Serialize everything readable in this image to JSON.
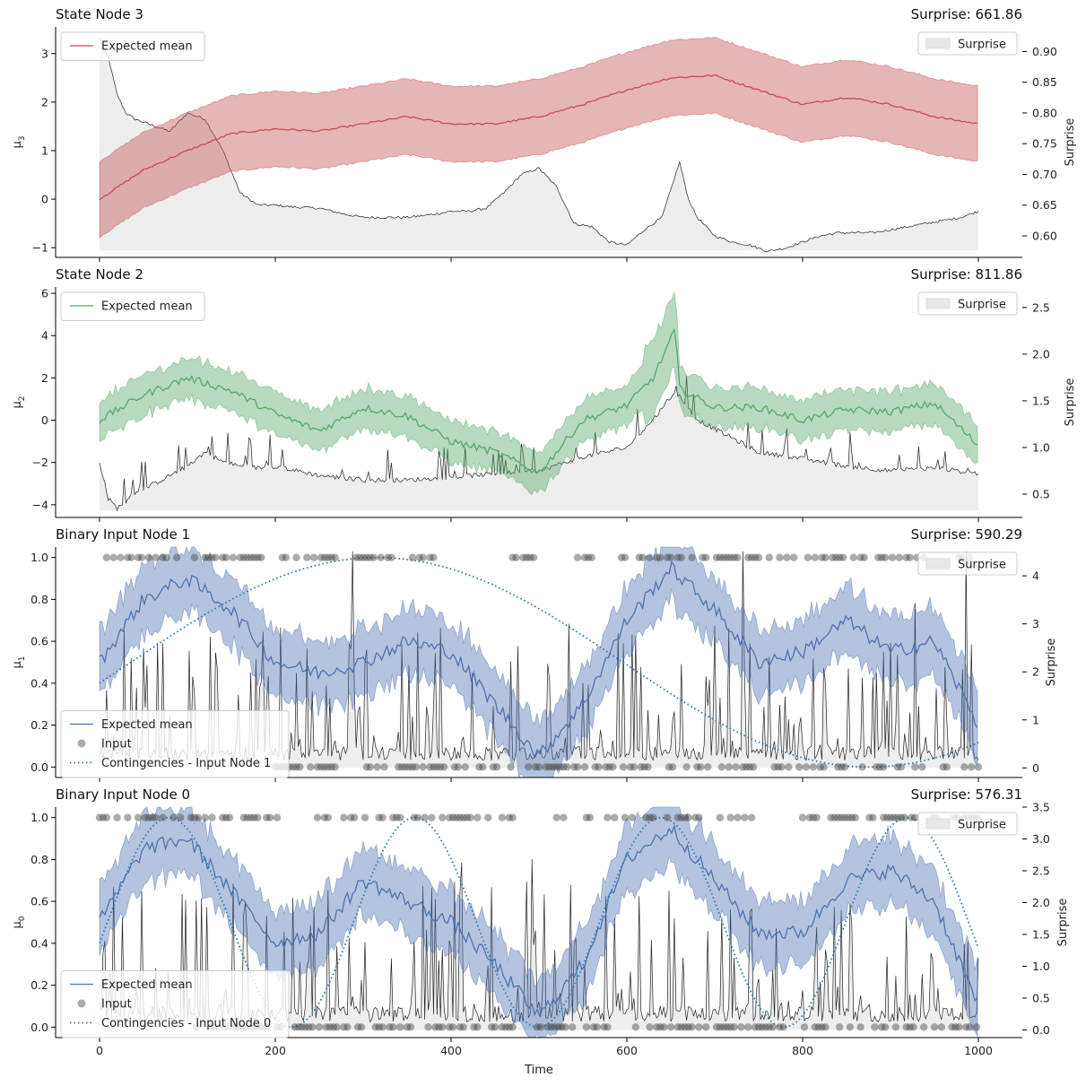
{
  "figure": {
    "xlabel": "Time",
    "x_ticks": [
      0,
      200,
      400,
      600,
      800,
      1000
    ],
    "xlim": [
      -50,
      1050
    ]
  },
  "chart_data": [
    {
      "type": "line",
      "title": "State Node 3",
      "surprise_label": "Surprise: 661.86",
      "ylabel": "μ₃",
      "ylabel_sub": "3",
      "y2label": "Surprise",
      "ylim": [
        -1.2,
        3.55
      ],
      "y_ticks": [
        -1,
        0,
        1,
        2,
        3
      ],
      "y2lim": [
        0.565,
        0.94
      ],
      "y2_ticks": [
        "0.60",
        "0.65",
        "0.70",
        "0.75",
        "0.80",
        "0.85",
        "0.90"
      ],
      "legend_left": [
        "Expected mean"
      ],
      "legend_right": [
        "Surprise"
      ],
      "color": "#c44e52",
      "series": [
        {
          "name": "Expected mean",
          "x": [
            0,
            50,
            100,
            150,
            200,
            250,
            300,
            350,
            400,
            450,
            500,
            550,
            600,
            650,
            700,
            750,
            800,
            850,
            900,
            950,
            1000
          ],
          "values": [
            0.0,
            0.6,
            1.0,
            1.35,
            1.45,
            1.4,
            1.55,
            1.7,
            1.55,
            1.55,
            1.7,
            1.95,
            2.25,
            2.5,
            2.55,
            2.25,
            1.95,
            2.1,
            1.95,
            1.7,
            1.55
          ],
          "band": 0.78
        },
        {
          "name": "Surprise",
          "x": [
            0,
            10,
            20,
            30,
            40,
            60,
            80,
            100,
            120,
            140,
            160,
            180,
            200,
            220,
            250,
            280,
            300,
            320,
            350,
            380,
            400,
            420,
            440,
            460,
            480,
            500,
            520,
            540,
            560,
            580,
            600,
            620,
            640,
            660,
            670,
            680,
            700,
            720,
            740,
            760,
            780,
            800,
            820,
            840,
            860,
            880,
            900,
            920,
            940,
            960,
            980,
            1000
          ],
          "values": [
            0.92,
            0.89,
            0.83,
            0.8,
            0.79,
            0.78,
            0.77,
            0.8,
            0.79,
            0.74,
            0.67,
            0.65,
            0.65,
            0.647,
            0.645,
            0.635,
            0.63,
            0.63,
            0.63,
            0.635,
            0.64,
            0.64,
            0.645,
            0.67,
            0.7,
            0.71,
            0.68,
            0.62,
            0.615,
            0.59,
            0.585,
            0.61,
            0.63,
            0.72,
            0.66,
            0.63,
            0.6,
            0.59,
            0.585,
            0.575,
            0.58,
            0.59,
            0.6,
            0.605,
            0.605,
            0.605,
            0.61,
            0.615,
            0.62,
            0.625,
            0.63,
            0.64
          ]
        }
      ]
    },
    {
      "type": "line",
      "title": "State Node 2",
      "surprise_label": "Surprise: 811.86",
      "ylabel": "μ₂",
      "ylabel_sub": "2",
      "y2label": "Surprise",
      "ylim": [
        -4.6,
        6.3
      ],
      "y_ticks": [
        -4,
        -2,
        0,
        2,
        4,
        6
      ],
      "y2lim": [
        0.25,
        2.72
      ],
      "y2_ticks": [
        "0.5",
        "1.0",
        "1.5",
        "2.0",
        "2.5"
      ],
      "legend_left": [
        "Expected mean"
      ],
      "legend_right": [
        "Surprise"
      ],
      "color": "#55a868",
      "series": [
        {
          "name": "Expected mean",
          "x": [
            0,
            50,
            100,
            150,
            200,
            250,
            300,
            350,
            400,
            450,
            500,
            550,
            600,
            630,
            655,
            660,
            700,
            750,
            800,
            850,
            900,
            950,
            1000
          ],
          "values": [
            0.0,
            1.2,
            2.0,
            1.4,
            0.3,
            -0.5,
            0.6,
            0.2,
            -1.0,
            -1.5,
            -2.5,
            0.0,
            0.7,
            2.0,
            4.3,
            1.5,
            0.6,
            0.6,
            0.0,
            0.5,
            0.4,
            0.8,
            -1.2
          ],
          "band": 0.95
        },
        {
          "name": "Surprise",
          "x": [
            0,
            10,
            20,
            40,
            60,
            80,
            100,
            120,
            140,
            160,
            180,
            200,
            250,
            300,
            350,
            400,
            450,
            500,
            550,
            600,
            630,
            655,
            660,
            680,
            700,
            750,
            800,
            850,
            900,
            950,
            1000
          ],
          "values": [
            0.85,
            0.45,
            0.35,
            0.5,
            0.6,
            0.7,
            0.8,
            0.95,
            0.85,
            0.8,
            0.78,
            0.8,
            0.7,
            0.65,
            0.65,
            0.68,
            0.72,
            0.75,
            0.9,
            1.0,
            1.3,
            1.6,
            1.55,
            1.3,
            1.2,
            0.95,
            0.88,
            0.8,
            0.75,
            0.78,
            0.72
          ]
        }
      ]
    },
    {
      "type": "line",
      "title": "Binary Input Node 1",
      "surprise_label": "Surprise: 590.29",
      "ylabel": "μ₁",
      "ylabel_sub": "1",
      "y2label": "Surprise",
      "ylim": [
        -0.05,
        1.05
      ],
      "y_ticks": [
        "0.0",
        "0.2",
        "0.4",
        "0.6",
        "0.8",
        "1.0"
      ],
      "y2lim": [
        -0.2,
        4.6
      ],
      "y2_ticks": [
        "0",
        "1",
        "2",
        "3",
        "4"
      ],
      "legend_left": [
        "Expected mean",
        "Input",
        "Contingencies - Input Node 1"
      ],
      "legend_right": [
        "Surprise"
      ],
      "color": "#4c72b0",
      "contingency_period": 1120,
      "contingency_phase": 0,
      "contingency_amplitude": 0.5,
      "series": [
        {
          "name": "Expected mean",
          "x": [
            0,
            50,
            100,
            150,
            200,
            250,
            300,
            350,
            400,
            450,
            500,
            550,
            600,
            650,
            700,
            750,
            800,
            850,
            900,
            950,
            1000
          ],
          "values": [
            0.5,
            0.8,
            0.9,
            0.75,
            0.5,
            0.45,
            0.5,
            0.6,
            0.55,
            0.3,
            0.05,
            0.3,
            0.7,
            0.95,
            0.75,
            0.5,
            0.55,
            0.7,
            0.55,
            0.6,
            0.2
          ],
          "band": 0.12
        },
        {
          "name": "Input",
          "ones_ranges": [
            [
              0,
              390
            ],
            [
              470,
              500
            ],
            [
              540,
              560
            ],
            [
              590,
              940
            ],
            [
              970,
              990
            ]
          ],
          "zeros_ranges": [
            [
              200,
              1000
            ]
          ]
        },
        {
          "name": "Contingencies - Input Node 1"
        }
      ]
    },
    {
      "type": "line",
      "title": "Binary Input Node 0",
      "surprise_label": "Surprise: 576.31",
      "ylabel": "μ₀",
      "ylabel_sub": "0",
      "y2label": "Surprise",
      "ylim": [
        -0.05,
        1.05
      ],
      "y_ticks": [
        "0.0",
        "0.2",
        "0.4",
        "0.6",
        "0.8",
        "1.0"
      ],
      "y2lim": [
        -0.12,
        3.5
      ],
      "y2_ticks": [
        "0.0",
        "0.5",
        "1.0",
        "1.5",
        "2.0",
        "2.5",
        "3.0",
        "3.5"
      ],
      "legend_left": [
        "Expected mean",
        "Input",
        "Contingencies - Input Node 0"
      ],
      "legend_right": [
        "Surprise"
      ],
      "color": "#4c72b0",
      "contingency_period": 280,
      "contingency_phase": 0,
      "contingency_amplitude": 0.5,
      "series": [
        {
          "name": "Expected mean",
          "x": [
            0,
            50,
            100,
            150,
            200,
            250,
            300,
            350,
            400,
            450,
            500,
            550,
            600,
            650,
            700,
            750,
            800,
            850,
            900,
            950,
            1000
          ],
          "values": [
            0.5,
            0.85,
            0.9,
            0.65,
            0.4,
            0.45,
            0.7,
            0.6,
            0.5,
            0.3,
            0.05,
            0.3,
            0.8,
            0.95,
            0.7,
            0.45,
            0.45,
            0.7,
            0.75,
            0.6,
            0.1
          ],
          "band": 0.12
        },
        {
          "name": "Input",
          "ones_ranges": [
            [
              0,
              180
            ],
            [
              190,
              205
            ],
            [
              240,
              260
            ],
            [
              270,
              470
            ],
            [
              520,
              540
            ],
            [
              550,
              760
            ],
            [
              800,
              1000
            ]
          ],
          "zeros_ranges": [
            [
              110,
              1000
            ]
          ]
        },
        {
          "name": "Contingencies - Input Node 0"
        }
      ]
    }
  ]
}
